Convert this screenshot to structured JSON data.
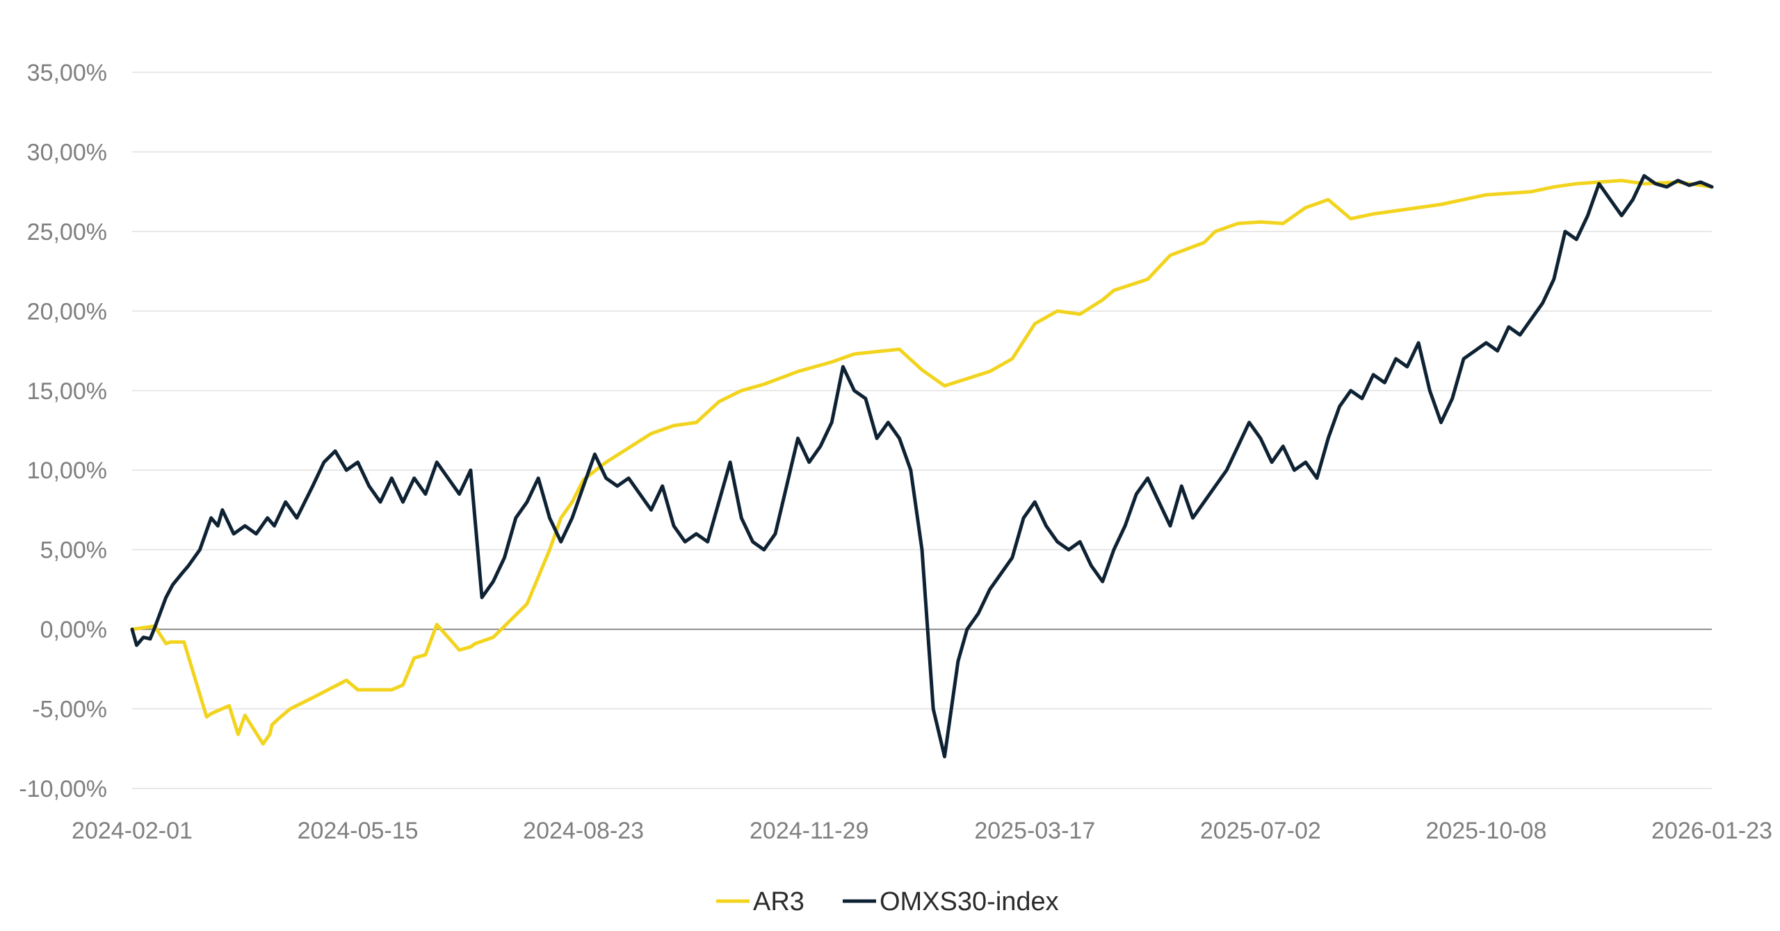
{
  "chart_data": {
    "type": "line",
    "title": "",
    "xlabel": "",
    "ylabel": "",
    "ylim": [
      -10,
      35
    ],
    "y_ticks": [
      35,
      30,
      25,
      20,
      15,
      10,
      5,
      0,
      -5,
      -10
    ],
    "y_tick_labels": [
      "35,00%",
      "30,00%",
      "25,00%",
      "20,00%",
      "15,00%",
      "10,00%",
      "5,00%",
      "0,00%",
      "-5,00%",
      "-10,00%"
    ],
    "x_tick_labels": [
      "2024-02-01",
      "2024-05-15",
      "2024-08-23",
      "2024-11-29",
      "2025-03-17",
      "2025-07-02",
      "2025-10-08",
      "2026-01-23"
    ],
    "x_tick_index": [
      0,
      1,
      2,
      3,
      4,
      5,
      6,
      7
    ],
    "x_range": [
      0,
      7
    ],
    "grid": true,
    "legend_position": "bottom-center",
    "series": [
      {
        "name": "AR3",
        "color": "#f2d41f",
        "x": [
          0,
          0.1,
          0.15,
          0.17,
          0.23,
          0.33,
          0.35,
          0.43,
          0.47,
          0.5,
          0.58,
          0.61,
          0.62,
          0.65,
          0.7,
          0.8,
          0.95,
          1.0,
          1.15,
          1.2,
          1.25,
          1.3,
          1.35,
          1.45,
          1.5,
          1.52,
          1.6,
          1.75,
          1.85,
          1.9,
          1.95,
          2.0,
          2.1,
          2.2,
          2.3,
          2.4,
          2.5,
          2.6,
          2.7,
          2.8,
          2.95,
          3.1,
          3.2,
          3.4,
          3.5,
          3.6,
          3.8,
          3.9,
          4.0,
          4.1,
          4.2,
          4.3,
          4.35,
          4.5,
          4.6,
          4.75,
          4.8,
          4.9,
          5.0,
          5.1,
          5.2,
          5.3,
          5.4,
          5.5,
          5.6,
          5.8,
          5.9,
          6.0,
          6.2,
          6.3,
          6.4,
          6.5,
          6.6,
          6.7,
          6.85,
          7.0
        ],
        "values": [
          0,
          0.2,
          -0.9,
          -0.8,
          -0.8,
          -5.5,
          -5.3,
          -4.8,
          -6.6,
          -5.4,
          -7.2,
          -6.6,
          -6.0,
          -5.6,
          -5.0,
          -4.3,
          -3.2,
          -3.8,
          -3.8,
          -3.5,
          -1.8,
          -1.6,
          0.3,
          -1.3,
          -1.1,
          -0.9,
          -0.5,
          1.6,
          5.0,
          7.0,
          8.0,
          9.4,
          10.5,
          11.4,
          12.3,
          12.8,
          13.0,
          14.3,
          15.0,
          15.4,
          16.2,
          16.8,
          17.3,
          17.6,
          16.3,
          15.3,
          16.2,
          17.0,
          19.2,
          20.0,
          19.8,
          20.7,
          21.3,
          22.0,
          23.5,
          24.3,
          25.0,
          25.5,
          25.6,
          25.5,
          26.5,
          27.0,
          25.8,
          26.1,
          26.3,
          26.7,
          27.0,
          27.3,
          27.5,
          27.8,
          28.0,
          28.1,
          28.2,
          28.0,
          28.1,
          27.8
        ]
      },
      {
        "name": "OMXS30-index",
        "color": "#0e2233",
        "x": [
          0,
          0.02,
          0.05,
          0.08,
          0.1,
          0.15,
          0.18,
          0.22,
          0.25,
          0.3,
          0.35,
          0.38,
          0.4,
          0.45,
          0.5,
          0.55,
          0.6,
          0.63,
          0.68,
          0.73,
          0.8,
          0.85,
          0.9,
          0.95,
          1.0,
          1.05,
          1.1,
          1.15,
          1.2,
          1.25,
          1.3,
          1.35,
          1.4,
          1.45,
          1.5,
          1.55,
          1.6,
          1.65,
          1.7,
          1.75,
          1.8,
          1.85,
          1.9,
          1.95,
          2.0,
          2.05,
          2.1,
          2.15,
          2.2,
          2.25,
          2.3,
          2.35,
          2.4,
          2.45,
          2.5,
          2.55,
          2.6,
          2.65,
          2.7,
          2.75,
          2.8,
          2.85,
          2.9,
          2.95,
          3.0,
          3.05,
          3.1,
          3.15,
          3.2,
          3.25,
          3.3,
          3.35,
          3.4,
          3.45,
          3.5,
          3.55,
          3.6,
          3.63,
          3.66,
          3.7,
          3.75,
          3.8,
          3.85,
          3.9,
          3.95,
          4.0,
          4.05,
          4.1,
          4.15,
          4.2,
          4.25,
          4.3,
          4.35,
          4.4,
          4.45,
          4.5,
          4.55,
          4.6,
          4.65,
          4.7,
          4.75,
          4.8,
          4.85,
          4.9,
          4.95,
          5.0,
          5.05,
          5.1,
          5.15,
          5.2,
          5.25,
          5.3,
          5.35,
          5.4,
          5.45,
          5.5,
          5.55,
          5.6,
          5.65,
          5.7,
          5.75,
          5.8,
          5.85,
          5.9,
          5.95,
          6.0,
          6.05,
          6.1,
          6.15,
          6.2,
          6.25,
          6.3,
          6.35,
          6.4,
          6.45,
          6.5,
          6.55,
          6.6,
          6.65,
          6.7,
          6.75,
          6.8,
          6.85,
          6.9,
          6.95,
          7.0
        ],
        "values": [
          0,
          -1.0,
          -0.5,
          -0.6,
          0.1,
          2.0,
          2.8,
          3.5,
          4.0,
          5.0,
          7.0,
          6.5,
          7.5,
          6.0,
          6.5,
          6.0,
          7.0,
          6.5,
          8.0,
          7.0,
          9.0,
          10.5,
          11.2,
          10.0,
          10.5,
          9.0,
          8.0,
          9.5,
          8.0,
          9.5,
          8.5,
          10.5,
          9.5,
          8.5,
          10.0,
          2.0,
          3.0,
          4.5,
          7.0,
          8.0,
          9.5,
          7.0,
          5.5,
          7.0,
          9.0,
          11.0,
          9.5,
          9.0,
          9.5,
          8.5,
          7.5,
          9.0,
          6.5,
          5.5,
          6.0,
          5.5,
          8.0,
          10.5,
          7.0,
          5.5,
          5.0,
          6.0,
          9.0,
          12.0,
          10.5,
          11.5,
          13.0,
          16.5,
          15.0,
          14.5,
          12.0,
          13.0,
          12.0,
          10.0,
          5.0,
          -5.0,
          -8.0,
          -5.0,
          -2.0,
          0.0,
          1.0,
          2.5,
          3.5,
          4.5,
          7.0,
          8.0,
          6.5,
          5.5,
          5.0,
          5.5,
          4.0,
          3.0,
          5.0,
          6.5,
          8.5,
          9.5,
          8.0,
          6.5,
          9.0,
          7.0,
          8.0,
          9.0,
          10.0,
          11.5,
          13.0,
          12.0,
          10.5,
          11.5,
          10.0,
          10.5,
          9.5,
          12.0,
          14.0,
          15.0,
          14.5,
          16.0,
          15.5,
          17.0,
          16.5,
          18.0,
          15.0,
          13.0,
          14.5,
          17.0,
          17.5,
          18.0,
          17.5,
          19.0,
          18.5,
          19.5,
          20.5,
          22.0,
          25.0,
          24.5,
          26.0,
          28.0,
          27.0,
          26.0,
          27.0,
          28.5,
          28.0,
          27.8,
          28.2,
          27.9,
          28.1,
          27.8
        ]
      }
    ]
  }
}
